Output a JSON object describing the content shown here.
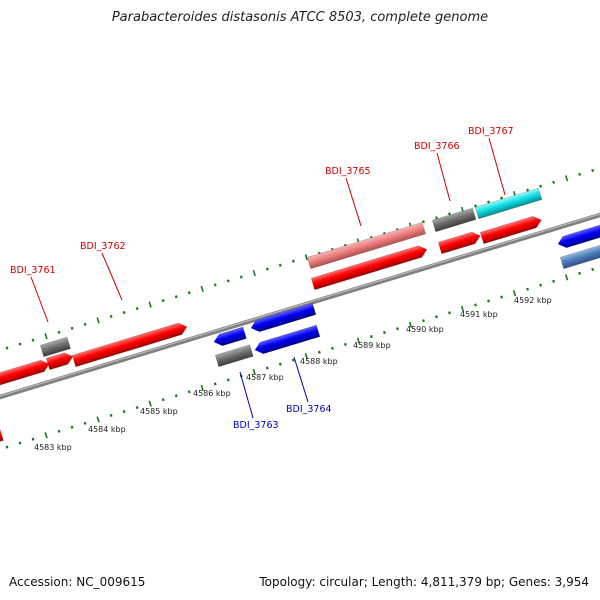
{
  "title": "Parabacteroides distasonis ATCC 8503, complete genome",
  "footer": {
    "accession": "Accession: NC_009615",
    "summary": "Topology: circular; Length: 4,811,379 bp; Genes: 3,954"
  },
  "colors": {
    "forward_gene": "#ff0000",
    "forward_gene_light": "#ee8080",
    "reverse_gene": "#0000ee",
    "reverse_gene_steel": "#4f7fbf",
    "pseudo_gray": "#707070",
    "cyan_gene": "#10dfe6",
    "backbone": "#8c8c8c",
    "tick": "#1a7a1a",
    "forward_label": "#cc0000",
    "reverse_label": "#0000bb"
  },
  "scale_ticks_kbp": [
    "4583 kbp",
    "4584 kbp",
    "4585 kbp",
    "4586 kbp",
    "4587 kbp",
    "4588 kbp",
    "4589 kbp",
    "4590 kbp",
    "4591 kbp",
    "4592 kbp"
  ],
  "forward_labels": [
    "BDI_3761",
    "BDI_3762",
    "BDI_3765",
    "BDI_3766",
    "BDI_3767"
  ],
  "reverse_labels": [
    "BDI_3763",
    "BDI_3764"
  ]
}
